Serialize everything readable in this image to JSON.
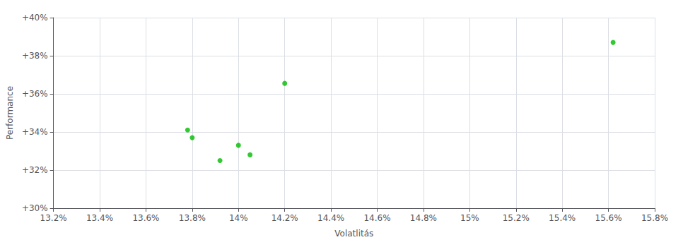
{
  "chart_data": {
    "type": "scatter",
    "xlabel": "Volatlitás",
    "ylabel": "Performance",
    "x": [
      13.78,
      13.8,
      13.92,
      14.0,
      14.05,
      14.2,
      15.62
    ],
    "values": [
      34.1,
      33.7,
      32.5,
      33.3,
      32.8,
      36.55,
      38.7
    ],
    "color": "#00bb00",
    "xlim": [
      13.2,
      15.8
    ],
    "xticks": [
      {
        "value": 13.2,
        "label": "13.2%"
      },
      {
        "value": 13.4,
        "label": "13.4%"
      },
      {
        "value": 13.6,
        "label": "13.6%"
      },
      {
        "value": 13.8,
        "label": "13.8%"
      },
      {
        "value": 14.0,
        "label": "14%"
      },
      {
        "value": 14.2,
        "label": "14.2%"
      },
      {
        "value": 14.4,
        "label": "14.4%"
      },
      {
        "value": 14.6,
        "label": "14.6%"
      },
      {
        "value": 14.8,
        "label": "14.8%"
      },
      {
        "value": 15.0,
        "label": "15%"
      },
      {
        "value": 15.2,
        "label": "15.2%"
      },
      {
        "value": 15.4,
        "label": "15.4%"
      },
      {
        "value": 15.6,
        "label": "15.6%"
      },
      {
        "value": 15.8,
        "label": "15.8%"
      }
    ],
    "ylim": [
      30.0,
      40.0
    ],
    "yticks": [
      {
        "value": 30.0,
        "label": "+30%"
      },
      {
        "value": 32.0,
        "label": "+32%"
      },
      {
        "value": 34.0,
        "label": "+34%"
      },
      {
        "value": 36.0,
        "label": "+36%"
      },
      {
        "value": 38.0,
        "label": "+38%"
      },
      {
        "value": 40.0,
        "label": "+40%"
      }
    ],
    "grid": true
  }
}
